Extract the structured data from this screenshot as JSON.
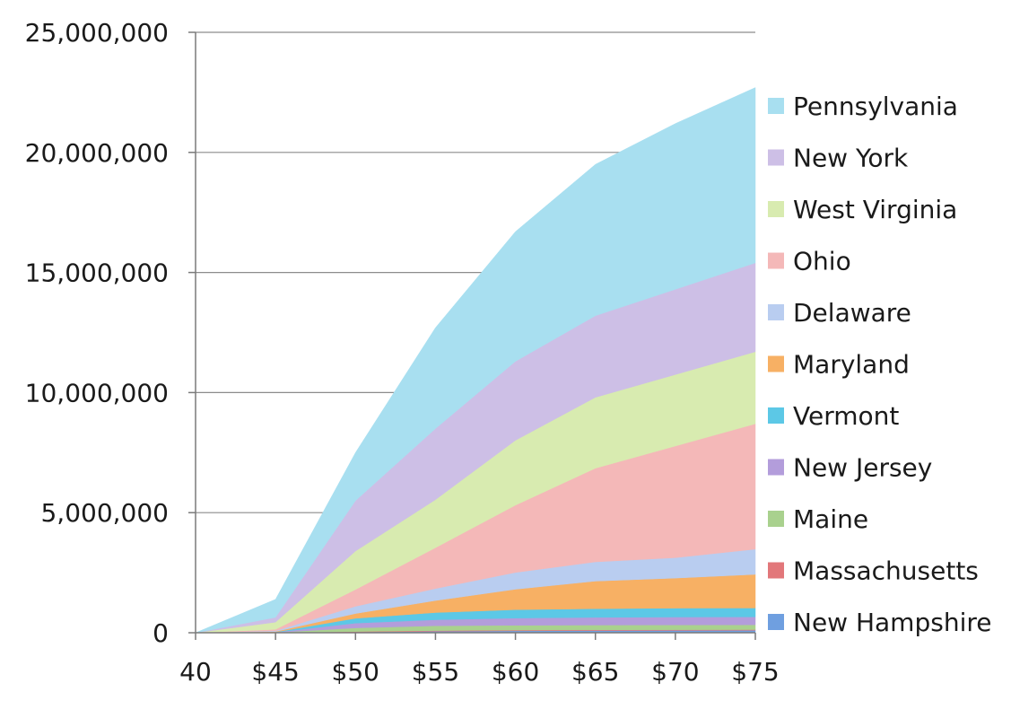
{
  "chart_data": {
    "type": "area",
    "stacked": true,
    "title": "",
    "xlabel": "",
    "ylabel": "",
    "categories": [
      "40",
      "$45",
      "$50",
      "$55",
      "$60",
      "$65",
      "$70",
      "$75"
    ],
    "ylim": [
      0,
      25000000
    ],
    "yticks": [
      0,
      5000000,
      10000000,
      15000000,
      20000000,
      25000000
    ],
    "ytick_labels": [
      "0",
      "5,000,000",
      "10,000,000",
      "15,000,000",
      "20,000,000",
      "25,000,000"
    ],
    "grid": true,
    "legend": "right",
    "series": [
      {
        "name": "New Hampshire",
        "color": "#6f9fe0",
        "values": [
          0,
          0,
          30000,
          60000,
          80000,
          90000,
          95000,
          100000
        ]
      },
      {
        "name": "Massachusetts",
        "color": "#e2777a",
        "values": [
          0,
          0,
          20000,
          30000,
          30000,
          30000,
          30000,
          30000
        ]
      },
      {
        "name": "Maine",
        "color": "#a9d18e",
        "values": [
          0,
          10000,
          150000,
          200000,
          200000,
          200000,
          200000,
          200000
        ]
      },
      {
        "name": "New Jersey",
        "color": "#b39ddb",
        "values": [
          0,
          10000,
          200000,
          250000,
          300000,
          320000,
          330000,
          330000
        ]
      },
      {
        "name": "Vermont",
        "color": "#5cc8e6",
        "values": [
          0,
          10000,
          200000,
          300000,
          350000,
          360000,
          370000,
          370000
        ]
      },
      {
        "name": "Maryland",
        "color": "#f7b064",
        "values": [
          0,
          20000,
          200000,
          500000,
          850000,
          1150000,
          1250000,
          1400000
        ]
      },
      {
        "name": "Delaware",
        "color": "#b9cdf0",
        "values": [
          0,
          30000,
          300000,
          500000,
          700000,
          800000,
          850000,
          1050000
        ]
      },
      {
        "name": "Ohio",
        "color": "#f4b8b8",
        "values": [
          0,
          60000,
          700000,
          1700000,
          2800000,
          3900000,
          4650000,
          5220000
        ]
      },
      {
        "name": "West Virginia",
        "color": "#d8ebb0",
        "values": [
          0,
          300000,
          1600000,
          2000000,
          2700000,
          2950000,
          2975000,
          3000000
        ]
      },
      {
        "name": "New York",
        "color": "#cdbfe6",
        "values": [
          0,
          200000,
          2100000,
          2960000,
          3290000,
          3400000,
          3550000,
          3700000
        ]
      },
      {
        "name": "Pennsylvania",
        "color": "#a8dff0",
        "values": [
          0,
          750000,
          2000000,
          4200000,
          5400000,
          6300000,
          6900000,
          7300000
        ]
      }
    ]
  }
}
